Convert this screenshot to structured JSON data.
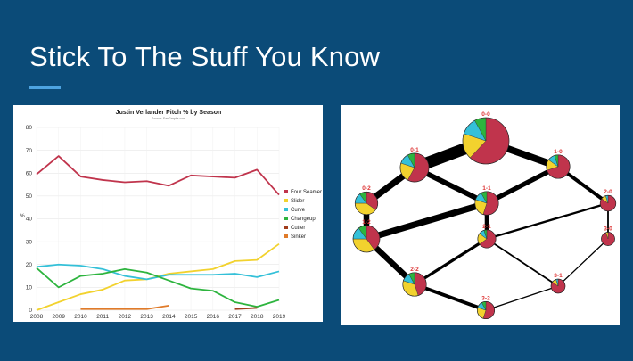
{
  "slide": {
    "title": "Stick To The Stuff You Know"
  },
  "chart_data": [
    {
      "type": "line",
      "title": "Justin Verlander Pitch % by Season",
      "subtitle": "Source: FanGraphs.com",
      "ylabel": "%",
      "xlabel": "",
      "ylim": [
        0,
        80
      ],
      "yticks": [
        0,
        10,
        20,
        30,
        40,
        50,
        60,
        70,
        80
      ],
      "x": [
        2008,
        2009,
        2010,
        2011,
        2012,
        2013,
        2014,
        2015,
        2016,
        2017,
        2018,
        2019
      ],
      "legend_position": "right",
      "grid": true,
      "series": [
        {
          "name": "Four Seamer",
          "color": "#c0344c",
          "values": [
            59.5,
            67.5,
            58.5,
            57,
            56,
            56.5,
            54.5,
            59,
            58.5,
            58,
            61.5,
            50.5
          ]
        },
        {
          "name": "Slider",
          "color": "#f2d22e",
          "values": [
            0,
            3.5,
            7,
            9,
            13,
            13.5,
            16,
            17,
            18,
            21.5,
            22,
            29
          ]
        },
        {
          "name": "Curve",
          "color": "#34c0d8",
          "values": [
            19,
            20,
            19.5,
            18,
            15,
            13.5,
            15.5,
            15.5,
            15.5,
            16,
            14.5,
            17
          ]
        },
        {
          "name": "Changeup",
          "color": "#2db43e",
          "values": [
            18.5,
            10,
            15,
            16,
            18,
            16.5,
            13,
            9.5,
            8.5,
            3.5,
            1.5,
            4.5
          ]
        },
        {
          "name": "Cutter",
          "color": "#a13d1c",
          "values": [
            null,
            null,
            null,
            null,
            null,
            null,
            null,
            null,
            null,
            0.5,
            1,
            null
          ]
        },
        {
          "name": "Sinker",
          "color": "#e07b2a",
          "values": [
            null,
            null,
            0.5,
            0.5,
            0.5,
            0.5,
            2,
            null,
            null,
            null,
            null,
            null
          ]
        }
      ]
    },
    {
      "type": "diagram",
      "nodes": [
        {
          "id": "0-0",
          "label": "0-0",
          "size": 1.0,
          "shares": [
            0.62,
            0.18,
            0.12,
            0.08
          ]
        },
        {
          "id": "0-1",
          "label": "0-1",
          "size": 0.55,
          "shares": [
            0.58,
            0.22,
            0.12,
            0.08
          ]
        },
        {
          "id": "1-0",
          "label": "1-0",
          "size": 0.42,
          "shares": [
            0.7,
            0.15,
            0.1,
            0.05
          ]
        },
        {
          "id": "0-2",
          "label": "0-2",
          "size": 0.4,
          "shares": [
            0.35,
            0.4,
            0.15,
            0.1
          ]
        },
        {
          "id": "1-1",
          "label": "1-1",
          "size": 0.42,
          "shares": [
            0.55,
            0.25,
            0.12,
            0.08
          ]
        },
        {
          "id": "2-0",
          "label": "2-0",
          "size": 0.22,
          "shares": [
            0.85,
            0.1,
            0.05,
            0.0
          ]
        },
        {
          "id": "1-2",
          "label": "1-2",
          "size": 0.5,
          "shares": [
            0.4,
            0.35,
            0.15,
            0.1
          ]
        },
        {
          "id": "2-1",
          "label": "2-1",
          "size": 0.28,
          "shares": [
            0.65,
            0.2,
            0.1,
            0.05
          ]
        },
        {
          "id": "3-0",
          "label": "3-0",
          "size": 0.16,
          "shares": [
            0.95,
            0.05,
            0.0,
            0.0
          ]
        },
        {
          "id": "2-2",
          "label": "2-2",
          "size": 0.42,
          "shares": [
            0.45,
            0.35,
            0.12,
            0.08
          ]
        },
        {
          "id": "3-1",
          "label": "3-1",
          "size": 0.18,
          "shares": [
            0.85,
            0.1,
            0.05,
            0.0
          ]
        },
        {
          "id": "3-2",
          "label": "3-2",
          "size": 0.26,
          "shares": [
            0.55,
            0.25,
            0.12,
            0.08
          ]
        }
      ],
      "edges": [
        {
          "from": "0-0",
          "to": "0-1",
          "weight": 1.0
        },
        {
          "from": "0-0",
          "to": "1-0",
          "weight": 0.6
        },
        {
          "from": "0-1",
          "to": "0-2",
          "weight": 0.55
        },
        {
          "from": "0-1",
          "to": "1-1",
          "weight": 0.45
        },
        {
          "from": "1-0",
          "to": "1-1",
          "weight": 0.4
        },
        {
          "from": "1-0",
          "to": "2-0",
          "weight": 0.3
        },
        {
          "from": "0-2",
          "to": "1-2",
          "weight": 0.5
        },
        {
          "from": "1-1",
          "to": "1-2",
          "weight": 0.55
        },
        {
          "from": "1-1",
          "to": "2-1",
          "weight": 0.35
        },
        {
          "from": "2-0",
          "to": "2-1",
          "weight": 0.18
        },
        {
          "from": "2-0",
          "to": "3-0",
          "weight": 0.14
        },
        {
          "from": "1-2",
          "to": "2-2",
          "weight": 0.5
        },
        {
          "from": "2-1",
          "to": "2-2",
          "weight": 0.25
        },
        {
          "from": "2-1",
          "to": "3-1",
          "weight": 0.14
        },
        {
          "from": "3-0",
          "to": "3-1",
          "weight": 0.1
        },
        {
          "from": "2-2",
          "to": "3-2",
          "weight": 0.3
        },
        {
          "from": "3-1",
          "to": "3-2",
          "weight": 0.1
        }
      ],
      "colors": [
        "#c0344c",
        "#f2d22e",
        "#34c0d8",
        "#2db43e"
      ]
    }
  ]
}
